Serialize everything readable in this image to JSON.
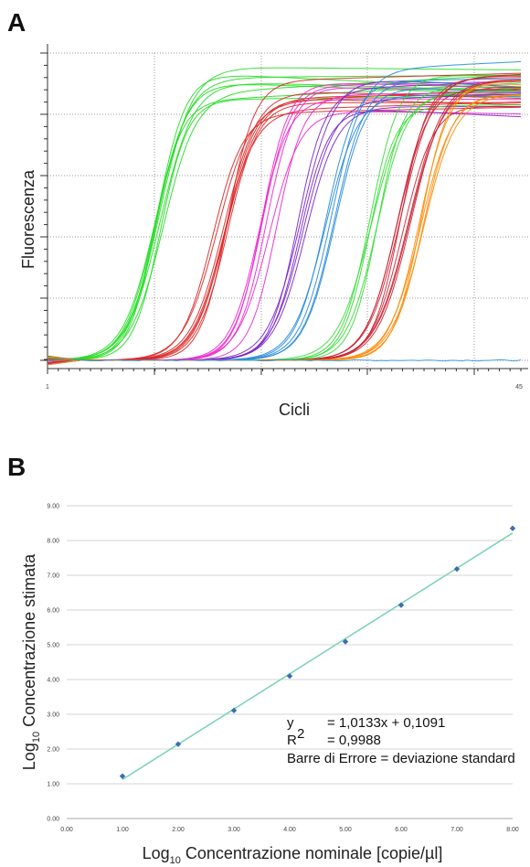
{
  "chart_data": [
    {
      "panel": "A",
      "type": "line",
      "xlabel": "Cicli",
      "ylabel": "Fluorescenza",
      "x_tick_labels": [
        "1",
        "45"
      ],
      "xlim": [
        1,
        45
      ],
      "grid": true,
      "grid_style": "dotted",
      "series": [
        {
          "color": "#22dd22",
          "count": 8,
          "ct": 11.5,
          "plateau": 0.9
        },
        {
          "color": "#dd2222",
          "count": 8,
          "ct": 17.0,
          "plateau": 0.86
        },
        {
          "color": "#ee22cc",
          "count": 6,
          "ct": 21.5,
          "plateau": 0.87
        },
        {
          "color": "#7722cc",
          "count": 5,
          "ct": 25.0,
          "plateau": 0.88
        },
        {
          "color": "#2288dd",
          "count": 5,
          "ct": 27.5,
          "plateau": 0.92
        },
        {
          "color": "#33dd33",
          "count": 5,
          "ct": 31.0,
          "plateau": 0.88
        },
        {
          "color": "#cc2233",
          "count": 8,
          "ct": 34.0,
          "plateau": 0.89
        },
        {
          "color": "#ff8800",
          "count": 5,
          "ct": 36.3,
          "plateau": 0.88
        },
        {
          "color": "#3399dd",
          "count": 1,
          "ct": null,
          "plateau": 0.0
        }
      ]
    },
    {
      "panel": "B",
      "type": "scatter",
      "xlabel_main": "Log",
      "xlabel_sub": "10",
      "xlabel_rest": " Concentrazione nominale [copie/µl]",
      "ylabel_main": "Log",
      "ylabel_sub": "10",
      "ylabel_rest": " Concentrazione stimata",
      "xlim": [
        0,
        8
      ],
      "ylim": [
        0,
        9
      ],
      "x_ticks": [
        "0.00",
        "1.00",
        "2.00",
        "3.00",
        "4.00",
        "5.00",
        "6.00",
        "7.00",
        "8.00"
      ],
      "y_ticks": [
        "0.00",
        "1.00",
        "2.00",
        "3.00",
        "4.00",
        "5.00",
        "6.00",
        "7.00",
        "8.00",
        "9.00"
      ],
      "grid": true,
      "points": [
        {
          "x": 1,
          "y": 1.22
        },
        {
          "x": 2,
          "y": 2.14
        },
        {
          "x": 3,
          "y": 3.11
        },
        {
          "x": 4,
          "y": 4.1
        },
        {
          "x": 5,
          "y": 5.09
        },
        {
          "x": 6,
          "y": 6.14
        },
        {
          "x": 7,
          "y": 7.18
        },
        {
          "x": 8,
          "y": 8.35
        }
      ],
      "trendline": {
        "slope": 1.0133,
        "intercept": 0.1091
      },
      "point_color": "#3a6fb0",
      "line_color": "#7fd4b8",
      "equation_lines": [
        {
          "left": "y",
          "right": "=   1,0133x + 0,1091"
        },
        {
          "left": "R",
          "sup": "2",
          "right": "=   0,9988"
        },
        {
          "left": "Barre di Errore = deviazione standard",
          "right": ""
        }
      ]
    }
  ],
  "panels": {
    "a_label": "A",
    "b_label": "B"
  }
}
